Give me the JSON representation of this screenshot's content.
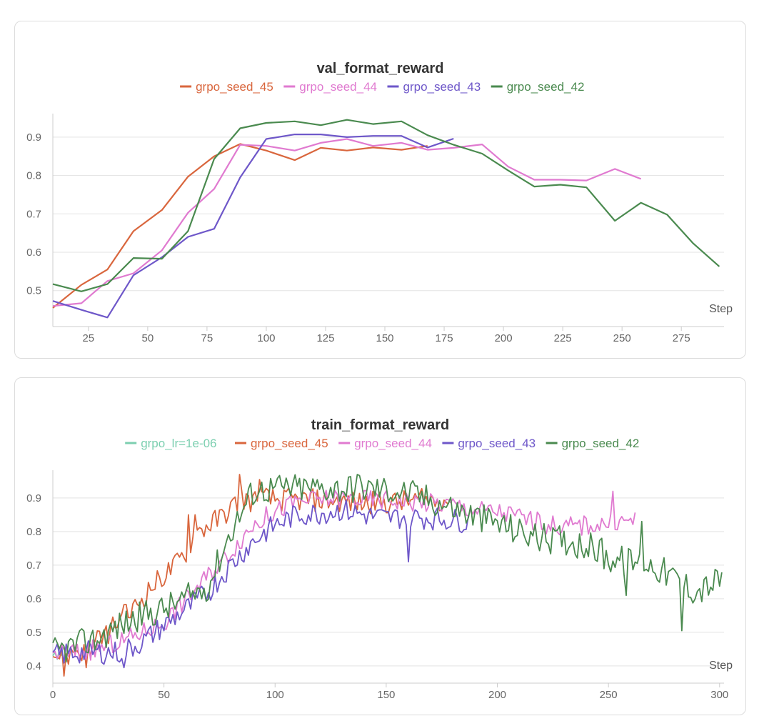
{
  "chart_data": [
    {
      "type": "line",
      "title": "val_format_reward",
      "xlabel": "Step",
      "ylabel": "",
      "xlim": [
        10,
        293
      ],
      "ylim": [
        0.425,
        0.95
      ],
      "xticks": [
        25,
        50,
        75,
        100,
        125,
        150,
        175,
        200,
        225,
        250,
        275
      ],
      "yticks": [
        0.5,
        0.6,
        0.7,
        0.8,
        0.9
      ],
      "grid": true,
      "legend": "top-center",
      "series": [
        {
          "name": "grpo_seed_45",
          "color": "#d9663d",
          "x": [
            10,
            22,
            33,
            44,
            56,
            67,
            78,
            89,
            100,
            112,
            123,
            134,
            145,
            157,
            168
          ],
          "y": [
            0.455,
            0.515,
            0.555,
            0.655,
            0.71,
            0.797,
            0.85,
            0.882,
            0.865,
            0.84,
            0.872,
            0.865,
            0.873,
            0.867,
            0.877
          ]
        },
        {
          "name": "grpo_seed_44",
          "color": "#e07ad0",
          "x": [
            10,
            22,
            33,
            44,
            56,
            67,
            78,
            89,
            100,
            112,
            123,
            134,
            145,
            157,
            168,
            179,
            191,
            202,
            213,
            224,
            235,
            247,
            258
          ],
          "y": [
            0.46,
            0.467,
            0.525,
            0.545,
            0.605,
            0.703,
            0.765,
            0.88,
            0.877,
            0.865,
            0.885,
            0.895,
            0.877,
            0.885,
            0.867,
            0.872,
            0.881,
            0.823,
            0.789,
            0.789,
            0.787,
            0.817,
            0.791
          ]
        },
        {
          "name": "grpo_seed_43",
          "color": "#6e57c9",
          "x": [
            10,
            22,
            33,
            44,
            56,
            67,
            78,
            89,
            100,
            112,
            123,
            134,
            145,
            157,
            168,
            179
          ],
          "y": [
            0.473,
            0.45,
            0.43,
            0.54,
            0.587,
            0.64,
            0.661,
            0.795,
            0.895,
            0.907,
            0.907,
            0.9,
            0.903,
            0.903,
            0.873,
            0.896
          ]
        },
        {
          "name": "grpo_seed_42",
          "color": "#4a8a4f",
          "x": [
            10,
            22,
            33,
            44,
            56,
            67,
            78,
            89,
            100,
            112,
            123,
            134,
            145,
            157,
            168,
            179,
            191,
            202,
            213,
            224,
            235,
            247,
            258,
            269,
            280,
            291
          ],
          "y": [
            0.517,
            0.498,
            0.517,
            0.585,
            0.583,
            0.655,
            0.843,
            0.923,
            0.937,
            0.941,
            0.931,
            0.945,
            0.934,
            0.941,
            0.905,
            0.88,
            0.857,
            0.813,
            0.771,
            0.776,
            0.769,
            0.682,
            0.729,
            0.698,
            0.623,
            0.563
          ]
        }
      ]
    },
    {
      "type": "line",
      "title": "train_format_reward",
      "xlabel": "Step",
      "ylabel": "",
      "xlim": [
        0,
        302
      ],
      "ylim": [
        0.37,
        0.97
      ],
      "xticks": [
        0,
        50,
        100,
        150,
        200,
        250,
        300
      ],
      "yticks": [
        0.4,
        0.5,
        0.6,
        0.7,
        0.8,
        0.9
      ],
      "grid": true,
      "legend": "top-center",
      "series": [
        {
          "name": "grpo_lr=1e-06",
          "color": "#7ccfb0",
          "x": [
            0,
            1,
            2,
            3,
            4
          ],
          "y": [
            0.43,
            0.44,
            0.42,
            0.45,
            0.43
          ]
        },
        {
          "name": "grpo_seed_45",
          "color": "#d9663d",
          "anchors": [
            [
              0,
              0.44
            ],
            [
              5,
              0.42
            ],
            [
              10,
              0.45
            ],
            [
              15,
              0.44
            ],
            [
              20,
              0.47
            ],
            [
              25,
              0.5
            ],
            [
              30,
              0.54
            ],
            [
              35,
              0.56
            ],
            [
              40,
              0.6
            ],
            [
              45,
              0.64
            ],
            [
              50,
              0.67
            ],
            [
              55,
              0.7
            ],
            [
              60,
              0.74
            ],
            [
              65,
              0.8
            ],
            [
              70,
              0.82
            ],
            [
              75,
              0.84
            ],
            [
              80,
              0.87
            ],
            [
              85,
              0.9
            ],
            [
              90,
              0.89
            ],
            [
              95,
              0.9
            ],
            [
              100,
              0.895
            ],
            [
              110,
              0.895
            ],
            [
              120,
              0.895
            ],
            [
              130,
              0.89
            ],
            [
              140,
              0.885
            ],
            [
              150,
              0.885
            ],
            [
              160,
              0.89
            ],
            [
              170,
              0.895
            ],
            [
              178,
              0.895
            ]
          ],
          "noise": 0.035,
          "seed": 45,
          "spikes": [
            [
              5,
              0.37
            ],
            [
              15,
              0.395
            ],
            [
              61,
              0.85
            ],
            [
              64,
              0.85
            ],
            [
              84,
              0.97
            ],
            [
              93,
              0.955
            ]
          ]
        },
        {
          "name": "grpo_seed_44",
          "color": "#e07ad0",
          "anchors": [
            [
              0,
              0.44
            ],
            [
              10,
              0.44
            ],
            [
              20,
              0.45
            ],
            [
              30,
              0.47
            ],
            [
              40,
              0.5
            ],
            [
              50,
              0.53
            ],
            [
              60,
              0.6
            ],
            [
              70,
              0.67
            ],
            [
              80,
              0.74
            ],
            [
              90,
              0.82
            ],
            [
              100,
              0.86
            ],
            [
              110,
              0.89
            ],
            [
              120,
              0.895
            ],
            [
              130,
              0.9
            ],
            [
              140,
              0.895
            ],
            [
              150,
              0.895
            ],
            [
              160,
              0.89
            ],
            [
              170,
              0.885
            ],
            [
              180,
              0.88
            ],
            [
              190,
              0.865
            ],
            [
              200,
              0.86
            ],
            [
              210,
              0.845
            ],
            [
              220,
              0.825
            ],
            [
              230,
              0.815
            ],
            [
              240,
              0.82
            ],
            [
              250,
              0.825
            ],
            [
              262,
              0.835
            ]
          ],
          "noise": 0.03,
          "seed": 44,
          "spikes": [
            [
              252,
              0.92
            ]
          ]
        },
        {
          "name": "grpo_seed_43",
          "color": "#6e57c9",
          "anchors": [
            [
              0,
              0.43
            ],
            [
              10,
              0.44
            ],
            [
              20,
              0.44
            ],
            [
              30,
              0.44
            ],
            [
              40,
              0.47
            ],
            [
              50,
              0.52
            ],
            [
              60,
              0.57
            ],
            [
              70,
              0.62
            ],
            [
              80,
              0.7
            ],
            [
              90,
              0.77
            ],
            [
              100,
              0.82
            ],
            [
              110,
              0.85
            ],
            [
              120,
              0.855
            ],
            [
              130,
              0.865
            ],
            [
              140,
              0.85
            ],
            [
              150,
              0.84
            ],
            [
              160,
              0.845
            ],
            [
              170,
              0.84
            ],
            [
              180,
              0.835
            ],
            [
              187,
              0.83
            ]
          ],
          "noise": 0.035,
          "seed": 43,
          "spikes": [
            [
              32,
              0.395
            ],
            [
              160,
              0.71
            ]
          ]
        },
        {
          "name": "grpo_seed_42",
          "color": "#4a8a4f",
          "anchors": [
            [
              0,
              0.44
            ],
            [
              10,
              0.46
            ],
            [
              20,
              0.48
            ],
            [
              30,
              0.52
            ],
            [
              40,
              0.55
            ],
            [
              50,
              0.57
            ],
            [
              60,
              0.6
            ],
            [
              70,
              0.64
            ],
            [
              80,
              0.8
            ],
            [
              90,
              0.92
            ],
            [
              100,
              0.93
            ],
            [
              110,
              0.93
            ],
            [
              120,
              0.93
            ],
            [
              130,
              0.93
            ],
            [
              140,
              0.93
            ],
            [
              150,
              0.925
            ],
            [
              160,
              0.915
            ],
            [
              170,
              0.895
            ],
            [
              180,
              0.87
            ],
            [
              190,
              0.845
            ],
            [
              200,
              0.825
            ],
            [
              210,
              0.8
            ],
            [
              220,
              0.78
            ],
            [
              230,
              0.775
            ],
            [
              240,
              0.76
            ],
            [
              250,
              0.72
            ],
            [
              260,
              0.71
            ],
            [
              270,
              0.7
            ],
            [
              280,
              0.66
            ],
            [
              290,
              0.62
            ],
            [
              301,
              0.66
            ]
          ],
          "noise": 0.045,
          "seed": 42,
          "spikes": [
            [
              137,
              0.975
            ],
            [
              247,
              0.78
            ],
            [
              258,
              0.61
            ],
            [
              265,
              0.83
            ],
            [
              283,
              0.505
            ]
          ]
        }
      ]
    }
  ]
}
